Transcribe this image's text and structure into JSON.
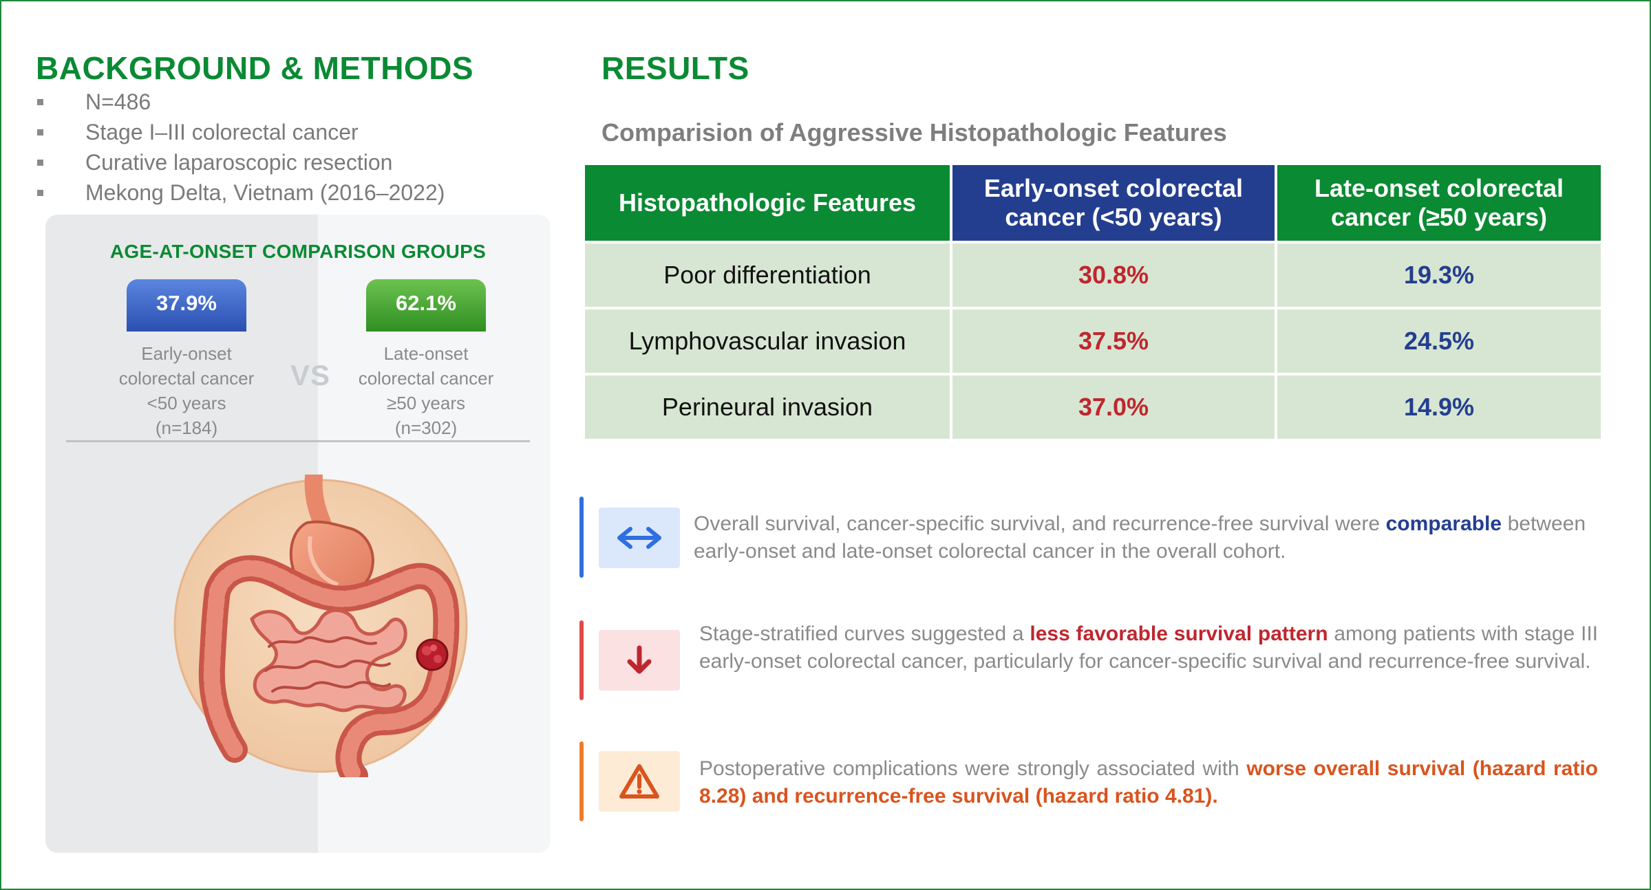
{
  "background": {
    "heading": "BACKGROUND & METHODS",
    "items": [
      "N=486",
      "Stage I–III colorectal cancer",
      "Curative laparoscopic resection",
      "Mekong Delta, Vietnam (2016–2022)"
    ]
  },
  "comparison_panel": {
    "title": "AGE-AT-ONSET COMPARISON GROUPS",
    "vs_label": "VS",
    "early": {
      "percent": "37.9%",
      "line1": "Early-onset",
      "line2": "colorectal cancer",
      "line3": "<50 years",
      "line4": "(n=184)"
    },
    "late": {
      "percent": "62.1%",
      "line1": "Late-onset",
      "line2": "colorectal cancer",
      "line3": "≥50 years",
      "line4": "(n=302)"
    }
  },
  "results": {
    "heading": "RESULTS",
    "table_title": "Comparision of Aggressive Histopathologic Features",
    "table": {
      "headers": [
        "Histopathologic Features",
        "Early-onset colorectal cancer (<50 years)",
        "Late-onset colorectal cancer (≥50 years)"
      ],
      "rows": [
        {
          "feature": "Poor differentiation",
          "early": "30.8%",
          "late": "19.3%"
        },
        {
          "feature": "Lymphovascular invasion",
          "early": "37.5%",
          "late": "24.5%"
        },
        {
          "feature": "Perineural invasion",
          "early": "37.0%",
          "late": "14.9%"
        }
      ]
    },
    "findings": [
      {
        "icon": "double-arrow-icon",
        "before": "Overall survival, cancer-specific survival, and recurrence-free survival were ",
        "highlight": "comparable",
        "after": " between early-onset and late-onset colorectal cancer in the overall cohort."
      },
      {
        "icon": "down-arrow-icon",
        "before": "Stage-stratified curves suggested a ",
        "highlight": "less favorable survival pattern",
        "after": " among patients with stage III early-onset colorectal cancer, particularly for cancer-specific survival and recurrence-free survival."
      },
      {
        "icon": "warning-icon",
        "before": "Postoperative complications were strongly associated with ",
        "highlight": "worse overall survival (hazard ratio 8.28) and recurrence-free survival (hazard ratio 4.81).",
        "after": ""
      }
    ]
  },
  "colors": {
    "green": "#0a8a33",
    "navy": "#243e8f",
    "red": "#c0262e",
    "orange": "#d9541e",
    "table_row": "#d7e6d2"
  }
}
